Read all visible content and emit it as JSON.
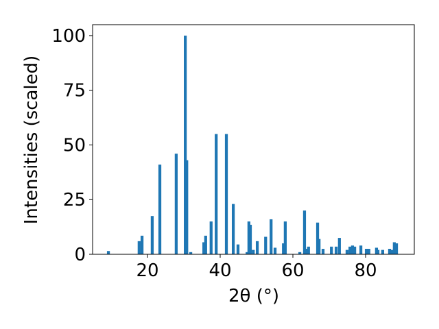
{
  "chart_data": {
    "type": "bar",
    "x_label": "2θ (°)",
    "y_label": "Intensities (scaled)",
    "x": [
      9.25,
      17.7,
      18.5,
      21.3,
      23.4,
      27.9,
      30.4,
      30.8,
      31.9,
      35.5,
      36.0,
      37.5,
      38.9,
      41.7,
      43.6,
      44.9,
      47.4,
      47.9,
      48.3,
      49.1,
      50.2,
      52.5,
      54.0,
      55.1,
      57.4,
      57.9,
      61.9,
      63.2,
      63.8,
      64.3,
      66.8,
      67.2,
      68.3,
      70.6,
      71.9,
      72.8,
      74.9,
      75.7,
      76.4,
      77.0,
      78.7,
      80.2,
      80.9,
      83.0,
      83.4,
      84.7,
      86.6,
      87.2,
      87.9,
      88.5
    ],
    "values": [
      1.5,
      6,
      8.5,
      17.5,
      41,
      46,
      100,
      43,
      1,
      5.5,
      8.5,
      15,
      55,
      55,
      23,
      4.5,
      1,
      15,
      13.5,
      2,
      6,
      8,
      16,
      3,
      5,
      15,
      1,
      20,
      2.5,
      3.5,
      14.5,
      7,
      2.5,
      3.5,
      3.5,
      7.5,
      2,
      3.5,
      4,
      3.5,
      4,
      2.5,
      2.5,
      3,
      2,
      2,
      2.5,
      2,
      5.5,
      5
    ],
    "color": "#1f77b4",
    "xlim": [
      4.9,
      93.4
    ],
    "xticks": [
      20,
      40,
      60,
      80
    ],
    "ylim": [
      0,
      105
    ],
    "yticks": [
      0,
      25,
      50,
      75,
      100
    ]
  }
}
